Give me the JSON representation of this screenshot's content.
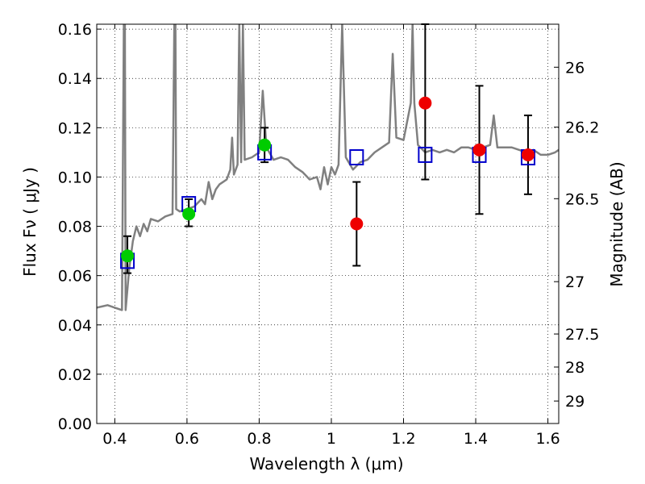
{
  "chart_data": {
    "type": "scatter",
    "xlabel": "Wavelength  λ (μm)",
    "ylabel_left": "Flux  Fν  ( μJy )",
    "ylabel_right": "Magnitude (AB)",
    "xlim": [
      0.35,
      1.63
    ],
    "ylim": [
      0.0,
      0.162
    ],
    "x_ticks": [
      {
        "value": 0.4,
        "label": "0.4"
      },
      {
        "value": 0.6,
        "label": "0.6"
      },
      {
        "value": 0.8,
        "label": "0.8"
      },
      {
        "value": 1.0,
        "label": "1"
      },
      {
        "value": 1.2,
        "label": "1.2"
      },
      {
        "value": 1.4,
        "label": "1.4"
      },
      {
        "value": 1.6,
        "label": "1.6"
      }
    ],
    "y_ticks": [
      {
        "value": 0.0,
        "label": "0.00"
      },
      {
        "value": 0.02,
        "label": "0.02"
      },
      {
        "value": 0.04,
        "label": "0.04"
      },
      {
        "value": 0.06,
        "label": "0.06"
      },
      {
        "value": 0.08,
        "label": "0.08"
      },
      {
        "value": 0.1,
        "label": "0.10"
      },
      {
        "value": 0.12,
        "label": "0.12"
      },
      {
        "value": 0.14,
        "label": "0.14"
      },
      {
        "value": 0.16,
        "label": "0.16"
      }
    ],
    "right_ticks": [
      {
        "mag": 26,
        "label": "26"
      },
      {
        "mag": 26.2,
        "label": "26.2"
      },
      {
        "mag": 26.5,
        "label": "26.5"
      },
      {
        "mag": 27,
        "label": "27"
      },
      {
        "mag": 27.5,
        "label": "27.5"
      },
      {
        "mag": 28,
        "label": "28"
      },
      {
        "mag": 29,
        "label": "29"
      }
    ],
    "grid": true,
    "colors": {
      "spectrum": "#808080",
      "model": "#0000cc",
      "green": "#00cc00",
      "red": "#ee0000",
      "errorbar": "#000000"
    },
    "series": [
      {
        "type": "line",
        "points": [
          [
            0.35,
            0.047
          ],
          [
            0.38,
            0.048
          ],
          [
            0.4,
            0.047
          ],
          [
            0.42,
            0.046
          ],
          [
            0.425,
            0.162
          ],
          [
            0.428,
            0.162
          ],
          [
            0.43,
            0.046
          ],
          [
            0.44,
            0.063
          ],
          [
            0.45,
            0.074
          ],
          [
            0.46,
            0.08
          ],
          [
            0.47,
            0.076
          ],
          [
            0.48,
            0.081
          ],
          [
            0.49,
            0.078
          ],
          [
            0.5,
            0.083
          ],
          [
            0.52,
            0.082
          ],
          [
            0.54,
            0.084
          ],
          [
            0.56,
            0.085
          ],
          [
            0.565,
            0.162
          ],
          [
            0.568,
            0.162
          ],
          [
            0.57,
            0.087
          ],
          [
            0.58,
            0.086
          ],
          [
            0.6,
            0.087
          ],
          [
            0.62,
            0.088
          ],
          [
            0.64,
            0.091
          ],
          [
            0.65,
            0.089
          ],
          [
            0.66,
            0.098
          ],
          [
            0.67,
            0.091
          ],
          [
            0.68,
            0.095
          ],
          [
            0.69,
            0.097
          ],
          [
            0.7,
            0.098
          ],
          [
            0.71,
            0.099
          ],
          [
            0.72,
            0.103
          ],
          [
            0.725,
            0.116
          ],
          [
            0.73,
            0.101
          ],
          [
            0.74,
            0.105
          ],
          [
            0.745,
            0.162
          ],
          [
            0.75,
            0.106
          ],
          [
            0.755,
            0.162
          ],
          [
            0.76,
            0.107
          ],
          [
            0.78,
            0.108
          ],
          [
            0.8,
            0.11
          ],
          [
            0.81,
            0.135
          ],
          [
            0.82,
            0.112
          ],
          [
            0.84,
            0.107
          ],
          [
            0.86,
            0.108
          ],
          [
            0.88,
            0.107
          ],
          [
            0.9,
            0.104
          ],
          [
            0.92,
            0.102
          ],
          [
            0.94,
            0.099
          ],
          [
            0.96,
            0.1
          ],
          [
            0.97,
            0.095
          ],
          [
            0.98,
            0.104
          ],
          [
            0.99,
            0.097
          ],
          [
            1.0,
            0.104
          ],
          [
            1.01,
            0.101
          ],
          [
            1.02,
            0.105
          ],
          [
            1.03,
            0.162
          ],
          [
            1.04,
            0.108
          ],
          [
            1.06,
            0.103
          ],
          [
            1.08,
            0.106
          ],
          [
            1.1,
            0.107
          ],
          [
            1.12,
            0.11
          ],
          [
            1.14,
            0.112
          ],
          [
            1.16,
            0.114
          ],
          [
            1.17,
            0.15
          ],
          [
            1.18,
            0.116
          ],
          [
            1.2,
            0.115
          ],
          [
            1.22,
            0.13
          ],
          [
            1.225,
            0.162
          ],
          [
            1.23,
            0.13
          ],
          [
            1.24,
            0.113
          ],
          [
            1.26,
            0.11
          ],
          [
            1.28,
            0.111
          ],
          [
            1.3,
            0.11
          ],
          [
            1.32,
            0.111
          ],
          [
            1.34,
            0.11
          ],
          [
            1.36,
            0.112
          ],
          [
            1.38,
            0.112
          ],
          [
            1.4,
            0.111
          ],
          [
            1.42,
            0.112
          ],
          [
            1.44,
            0.113
          ],
          [
            1.45,
            0.125
          ],
          [
            1.46,
            0.112
          ],
          [
            1.48,
            0.112
          ],
          [
            1.5,
            0.112
          ],
          [
            1.52,
            0.111
          ],
          [
            1.54,
            0.11
          ],
          [
            1.56,
            0.111
          ],
          [
            1.58,
            0.109
          ],
          [
            1.6,
            0.109
          ],
          [
            1.62,
            0.11
          ],
          [
            1.63,
            0.111
          ]
        ]
      },
      {
        "type": "squares",
        "points": [
          [
            0.435,
            0.066
          ],
          [
            0.605,
            0.089
          ],
          [
            0.815,
            0.11
          ],
          [
            1.07,
            0.108
          ],
          [
            1.26,
            0.109
          ],
          [
            1.41,
            0.109
          ],
          [
            1.545,
            0.108
          ]
        ]
      },
      {
        "type": "circles",
        "points": [
          [
            0.435,
            0.068,
            0.061,
            0.076
          ],
          [
            0.605,
            0.085,
            0.08,
            0.091
          ],
          [
            0.815,
            0.113,
            0.106,
            0.12
          ]
        ]
      },
      {
        "type": "circles",
        "points": [
          [
            1.07,
            0.081,
            0.064,
            0.098
          ],
          [
            1.26,
            0.13,
            0.099,
            0.162
          ],
          [
            1.41,
            0.111,
            0.085,
            0.137
          ],
          [
            1.545,
            0.109,
            0.093,
            0.125
          ]
        ]
      }
    ]
  }
}
